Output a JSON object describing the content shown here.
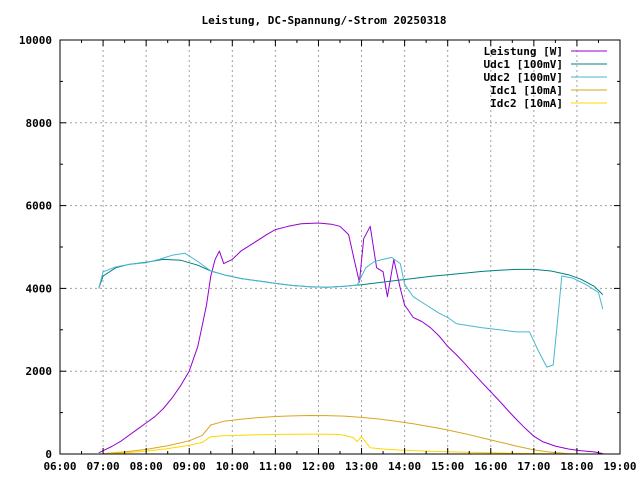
{
  "chart_data": {
    "type": "line",
    "title": "Leistung, DC-Spannung/-Strom 20250318",
    "x_ticks": [
      "06:00",
      "07:00",
      "08:00",
      "09:00",
      "10:00",
      "11:00",
      "12:00",
      "13:00",
      "14:00",
      "15:00",
      "16:00",
      "17:00",
      "18:00",
      "19:00"
    ],
    "y_ticks": [
      "0",
      "2000",
      "4000",
      "6000",
      "8000",
      "10000"
    ],
    "xlim": [
      6,
      19
    ],
    "ylim": [
      0,
      10000
    ],
    "grid": true,
    "legend_position": "top-right",
    "series": [
      {
        "name": "Leistung [W]",
        "color": "#9400d3",
        "points": [
          [
            6.9,
            30
          ],
          [
            7.0,
            80
          ],
          [
            7.2,
            180
          ],
          [
            7.4,
            300
          ],
          [
            7.6,
            450
          ],
          [
            7.8,
            600
          ],
          [
            8.0,
            750
          ],
          [
            8.2,
            900
          ],
          [
            8.4,
            1100
          ],
          [
            8.6,
            1350
          ],
          [
            8.8,
            1650
          ],
          [
            9.0,
            2000
          ],
          [
            9.1,
            2300
          ],
          [
            9.2,
            2600
          ],
          [
            9.3,
            3100
          ],
          [
            9.4,
            3600
          ],
          [
            9.5,
            4300
          ],
          [
            9.6,
            4700
          ],
          [
            9.7,
            4900
          ],
          [
            9.8,
            4600
          ],
          [
            10.0,
            4700
          ],
          [
            10.2,
            4900
          ],
          [
            10.5,
            5100
          ],
          [
            10.8,
            5300
          ],
          [
            11.0,
            5420
          ],
          [
            11.3,
            5500
          ],
          [
            11.6,
            5560
          ],
          [
            12.0,
            5580
          ],
          [
            12.3,
            5550
          ],
          [
            12.5,
            5500
          ],
          [
            12.7,
            5300
          ],
          [
            12.85,
            4600
          ],
          [
            12.95,
            4150
          ],
          [
            13.05,
            5200
          ],
          [
            13.2,
            5500
          ],
          [
            13.35,
            4500
          ],
          [
            13.5,
            4400
          ],
          [
            13.6,
            3800
          ],
          [
            13.75,
            4700
          ],
          [
            13.9,
            4000
          ],
          [
            14.0,
            3600
          ],
          [
            14.2,
            3300
          ],
          [
            14.4,
            3200
          ],
          [
            14.6,
            3050
          ],
          [
            14.8,
            2850
          ],
          [
            15.0,
            2600
          ],
          [
            15.2,
            2400
          ],
          [
            15.4,
            2180
          ],
          [
            15.6,
            1950
          ],
          [
            15.8,
            1720
          ],
          [
            16.0,
            1500
          ],
          [
            16.2,
            1280
          ],
          [
            16.4,
            1050
          ],
          [
            16.6,
            830
          ],
          [
            16.8,
            620
          ],
          [
            17.0,
            430
          ],
          [
            17.2,
            300
          ],
          [
            17.5,
            190
          ],
          [
            17.8,
            120
          ],
          [
            18.1,
            80
          ],
          [
            18.4,
            50
          ],
          [
            18.6,
            10
          ]
        ]
      },
      {
        "name": "Udc1 [100mV]",
        "color": "#008080",
        "points": [
          [
            6.9,
            4000
          ],
          [
            7.0,
            4300
          ],
          [
            7.3,
            4500
          ],
          [
            7.6,
            4580
          ],
          [
            8.0,
            4630
          ],
          [
            8.4,
            4700
          ],
          [
            8.8,
            4680
          ],
          [
            9.2,
            4560
          ],
          [
            9.5,
            4420
          ],
          [
            9.8,
            4330
          ],
          [
            10.2,
            4240
          ],
          [
            10.6,
            4180
          ],
          [
            11.0,
            4120
          ],
          [
            11.4,
            4070
          ],
          [
            11.8,
            4040
          ],
          [
            12.2,
            4030
          ],
          [
            12.6,
            4050
          ],
          [
            13.0,
            4090
          ],
          [
            13.4,
            4140
          ],
          [
            13.8,
            4190
          ],
          [
            14.2,
            4240
          ],
          [
            14.6,
            4290
          ],
          [
            15.0,
            4330
          ],
          [
            15.4,
            4370
          ],
          [
            15.8,
            4410
          ],
          [
            16.2,
            4440
          ],
          [
            16.6,
            4460
          ],
          [
            17.0,
            4460
          ],
          [
            17.4,
            4420
          ],
          [
            17.8,
            4330
          ],
          [
            18.1,
            4220
          ],
          [
            18.4,
            4050
          ],
          [
            18.6,
            3850
          ]
        ]
      },
      {
        "name": "Udc2 [100mV]",
        "color": "#4ab6cf",
        "points": [
          [
            6.9,
            4000
          ],
          [
            7.0,
            4400
          ],
          [
            7.3,
            4520
          ],
          [
            7.6,
            4580
          ],
          [
            8.0,
            4620
          ],
          [
            8.3,
            4700
          ],
          [
            8.6,
            4800
          ],
          [
            8.9,
            4850
          ],
          [
            9.2,
            4650
          ],
          [
            9.5,
            4420
          ],
          [
            9.8,
            4330
          ],
          [
            10.2,
            4240
          ],
          [
            10.6,
            4180
          ],
          [
            11.0,
            4120
          ],
          [
            11.4,
            4070
          ],
          [
            11.8,
            4040
          ],
          [
            12.2,
            4030
          ],
          [
            12.6,
            4050
          ],
          [
            12.9,
            4080
          ],
          [
            13.1,
            4500
          ],
          [
            13.3,
            4650
          ],
          [
            13.5,
            4700
          ],
          [
            13.7,
            4750
          ],
          [
            13.9,
            4600
          ],
          [
            14.0,
            4100
          ],
          [
            14.2,
            3800
          ],
          [
            14.5,
            3600
          ],
          [
            14.8,
            3400
          ],
          [
            15.0,
            3300
          ],
          [
            15.2,
            3150
          ],
          [
            15.5,
            3100
          ],
          [
            15.8,
            3050
          ],
          [
            16.2,
            3000
          ],
          [
            16.6,
            2950
          ],
          [
            16.9,
            2950
          ],
          [
            17.1,
            2500
          ],
          [
            17.3,
            2100
          ],
          [
            17.45,
            2150
          ],
          [
            17.55,
            3200
          ],
          [
            17.65,
            4300
          ],
          [
            17.9,
            4250
          ],
          [
            18.2,
            4100
          ],
          [
            18.5,
            3900
          ],
          [
            18.6,
            3500
          ]
        ]
      },
      {
        "name": "Idc1 [10mA]",
        "color": "#daa520",
        "points": [
          [
            7.0,
            10
          ],
          [
            7.5,
            50
          ],
          [
            8.0,
            110
          ],
          [
            8.5,
            200
          ],
          [
            9.0,
            320
          ],
          [
            9.3,
            450
          ],
          [
            9.5,
            700
          ],
          [
            9.8,
            790
          ],
          [
            10.2,
            840
          ],
          [
            10.6,
            880
          ],
          [
            11.0,
            905
          ],
          [
            11.4,
            920
          ],
          [
            11.8,
            930
          ],
          [
            12.2,
            928
          ],
          [
            12.6,
            915
          ],
          [
            13.0,
            885
          ],
          [
            13.4,
            845
          ],
          [
            13.8,
            790
          ],
          [
            14.2,
            730
          ],
          [
            14.6,
            660
          ],
          [
            15.0,
            580
          ],
          [
            15.4,
            490
          ],
          [
            15.8,
            390
          ],
          [
            16.2,
            290
          ],
          [
            16.6,
            190
          ],
          [
            17.0,
            100
          ],
          [
            17.4,
            40
          ],
          [
            17.8,
            10
          ],
          [
            18.1,
            0
          ]
        ]
      },
      {
        "name": "Idc2 [10mA]",
        "color": "#ffd700",
        "points": [
          [
            7.0,
            5
          ],
          [
            7.5,
            30
          ],
          [
            8.0,
            70
          ],
          [
            8.5,
            130
          ],
          [
            9.0,
            210
          ],
          [
            9.3,
            280
          ],
          [
            9.5,
            420
          ],
          [
            9.8,
            440
          ],
          [
            10.2,
            455
          ],
          [
            10.6,
            465
          ],
          [
            11.0,
            472
          ],
          [
            11.4,
            478
          ],
          [
            11.8,
            480
          ],
          [
            12.2,
            478
          ],
          [
            12.5,
            470
          ],
          [
            12.8,
            400
          ],
          [
            12.9,
            300
          ],
          [
            13.0,
            420
          ],
          [
            13.2,
            150
          ],
          [
            13.5,
            120
          ],
          [
            13.8,
            100
          ],
          [
            14.0,
            90
          ],
          [
            14.5,
            70
          ],
          [
            15.0,
            55
          ],
          [
            15.5,
            40
          ],
          [
            16.0,
            30
          ],
          [
            16.5,
            20
          ],
          [
            17.0,
            12
          ],
          [
            17.5,
            5
          ],
          [
            18.0,
            0
          ]
        ]
      }
    ]
  }
}
